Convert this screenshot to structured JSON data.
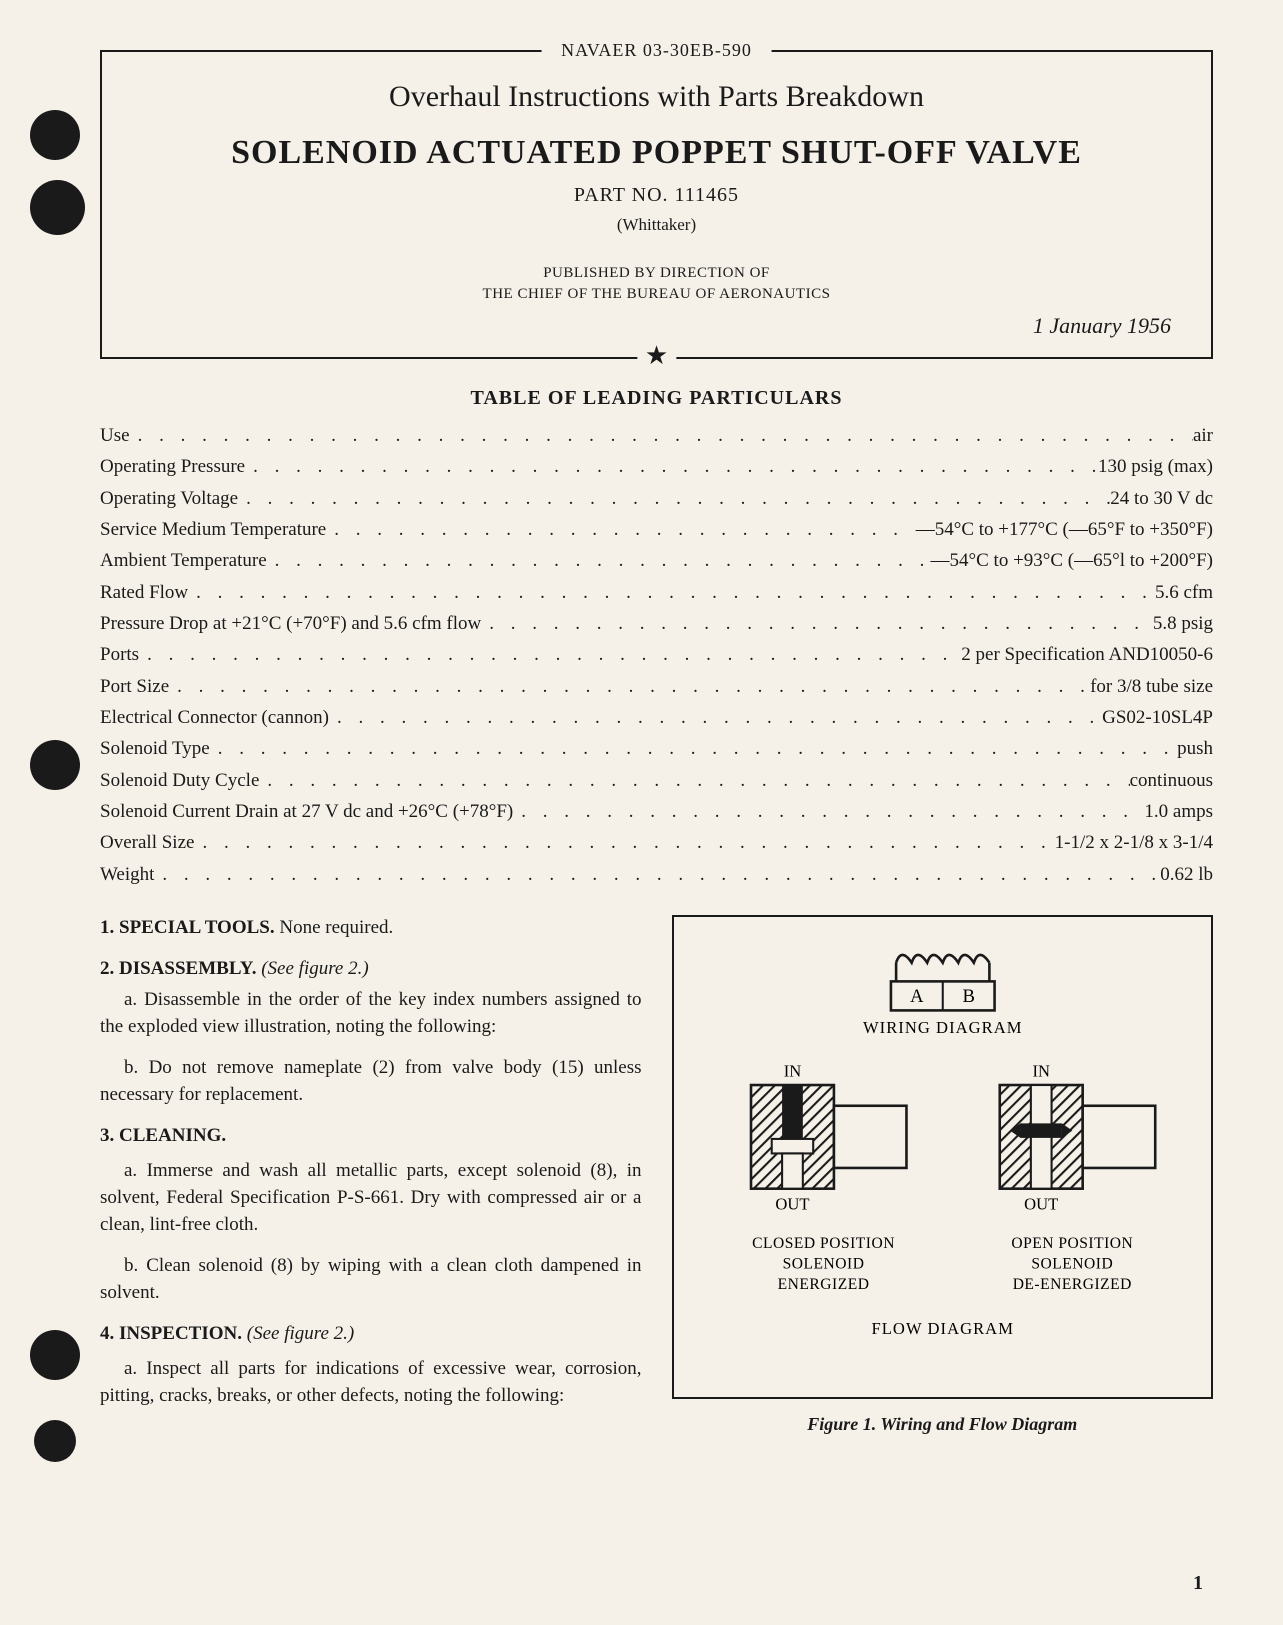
{
  "header": {
    "doc_number": "NAVAER 03-30EB-590",
    "subtitle": "Overhaul Instructions with Parts Breakdown",
    "main_title": "SOLENOID ACTUATED POPPET SHUT-OFF VALVE",
    "part_no": "PART NO. 111465",
    "manufacturer": "(Whittaker)",
    "published_line1": "PUBLISHED BY DIRECTION OF",
    "published_line2": "THE CHIEF OF THE BUREAU OF AERONAUTICS",
    "date": "1 January 1956",
    "star": "★"
  },
  "particulars": {
    "title": "TABLE OF LEADING PARTICULARS",
    "rows": [
      {
        "label": "Use",
        "value": "air"
      },
      {
        "label": "Operating Pressure",
        "value": "130 psig (max)"
      },
      {
        "label": "Operating Voltage",
        "value": "24 to 30 V dc"
      },
      {
        "label": "Service Medium Temperature",
        "value": "—54°C to +177°C (—65°F to +350°F)"
      },
      {
        "label": "Ambient Temperature",
        "value": "—54°C to +93°C (—65°l to +200°F)"
      },
      {
        "label": "Rated Flow",
        "value": "5.6 cfm"
      },
      {
        "label": "Pressure Drop at +21°C (+70°F) and 5.6 cfm flow",
        "value": "5.8 psig"
      },
      {
        "label": "Ports",
        "value": "2 per Specification AND10050-6"
      },
      {
        "label": "Port Size",
        "value": "for 3/8 tube size"
      },
      {
        "label": "Electrical Connector (cannon)",
        "value": "GS02-10SL4P"
      },
      {
        "label": "Solenoid Type",
        "value": "push"
      },
      {
        "label": "Solenoid Duty Cycle",
        "value": "continuous"
      },
      {
        "label": "Solenoid Current Drain at 27 V dc and +26°C (+78°F)",
        "value": "1.0 amps"
      },
      {
        "label": "Overall Size",
        "value": "1-1/2 x 2-1/8 x 3-1/4"
      },
      {
        "label": "Weight",
        "value": "0.62 lb"
      }
    ]
  },
  "sections": {
    "s1": {
      "heading": "1. SPECIAL TOOLS.",
      "text": " None required."
    },
    "s2": {
      "heading": "2. DISASSEMBLY.",
      "ref": " (See figure 2.)",
      "a": "a. Disassemble in the order of the key index numbers assigned to the exploded view illustration, noting the following:",
      "b": "b. Do not remove nameplate (2) from valve body (15) unless necessary for replacement."
    },
    "s3": {
      "heading": "3. CLEANING.",
      "a": "a. Immerse and wash all metallic parts, except solenoid (8), in solvent, Federal Specification P-S-661. Dry with compressed air or a clean, lint-free cloth.",
      "b": "b. Clean solenoid (8) by wiping with a clean cloth dampened in solvent."
    },
    "s4": {
      "heading": "4. INSPECTION.",
      "ref": " (See figure 2.)",
      "a": "a. Inspect all parts for indications of excessive wear, corrosion, pitting, cracks, breaks, or other defects, noting the following:"
    }
  },
  "figure": {
    "caption": "Figure 1. Wiring and Flow Diagram",
    "wiring_label": "WIRING DIAGRAM",
    "wiring_a": "A",
    "wiring_b": "B",
    "in_label": "IN",
    "out_label": "OUT",
    "closed_line1": "CLOSED POSITION",
    "closed_line2": "SOLENOID",
    "closed_line3": "ENERGIZED",
    "open_line1": "OPEN POSITION",
    "open_line2": "SOLENOID",
    "open_line3": "DE-ENERGIZED",
    "flow_label": "FLOW DIAGRAM",
    "colors": {
      "stroke": "#1a1a1a",
      "fill_bg": "#f5f1e8",
      "hatch": "#1a1a1a"
    }
  },
  "page_number": "1",
  "dots_fill": ". . . . . . . . . . . . . . . . . . . . . . . . . . . . . . . . . . . . . . . . . . . . . . . . . . . . . . . . . . . ."
}
